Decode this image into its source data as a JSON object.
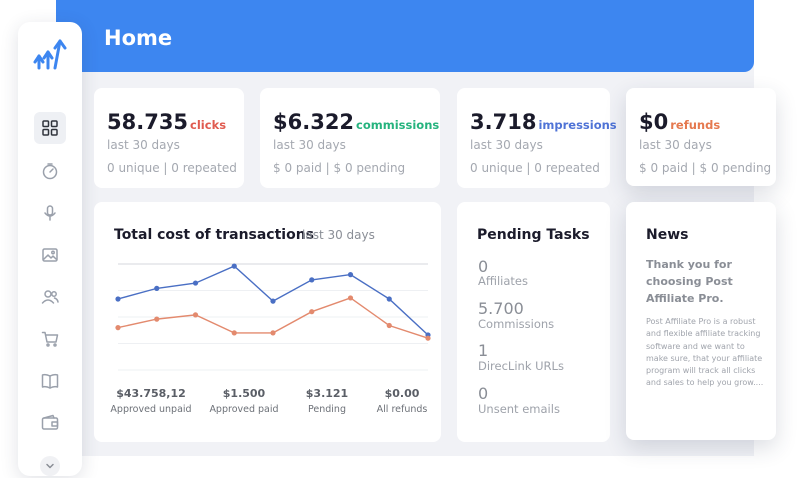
{
  "header": {
    "title": "Home",
    "background": "#3d86f0"
  },
  "sidebar": {
    "items": [
      {
        "icon": "dashboard-grid-icon",
        "active": true
      },
      {
        "icon": "stopwatch-icon"
      },
      {
        "icon": "microphone-icon"
      },
      {
        "icon": "image-icon"
      },
      {
        "icon": "users-icon"
      },
      {
        "icon": "cart-icon"
      },
      {
        "icon": "book-icon"
      },
      {
        "icon": "wallet-icon"
      }
    ],
    "scroll_icon": "chevron-down-icon"
  },
  "stats": [
    {
      "value": "58.735",
      "label": "clicks",
      "color": "#e05a4f",
      "period": "last 30 days",
      "detail": "0 unique | 0 repeated"
    },
    {
      "value": "$6.322",
      "label": "commissions",
      "color": "#25b37e",
      "period": "last 30 days",
      "detail": "$ 0 paid | $ 0 pending"
    },
    {
      "value": "3.718",
      "label": "impressions",
      "color": "#4f73d6",
      "period": "last 30 days",
      "detail": "0 unique | 0 repeated"
    },
    {
      "value": "$0",
      "label": "refunds",
      "color": "#e5794f",
      "period": "last 30 days",
      "detail": "$ 0 paid | $ 0 pending"
    }
  ],
  "transactions": {
    "title": "Total cost of transactions",
    "subtitle": "last 30 days",
    "summary": [
      {
        "value": "$43.758,12",
        "label": "Approved unpaid"
      },
      {
        "value": "$1.500",
        "label": "Approved paid"
      },
      {
        "value": "$3.121",
        "label": "Pending"
      },
      {
        "value": "$0.00",
        "label": "All refunds"
      }
    ]
  },
  "chart_data": {
    "type": "line",
    "title": "Total cost of transactions",
    "subtitle": "last 30 days",
    "x": [
      1,
      2,
      3,
      4,
      5,
      6,
      7,
      8,
      9
    ],
    "ylim": [
      0,
      100
    ],
    "grid": true,
    "series": [
      {
        "color": "#4a6fc4",
        "values": [
          67,
          77,
          82,
          98,
          65,
          85,
          90,
          67,
          33
        ]
      },
      {
        "color": "#e38a6e",
        "values": [
          40,
          48,
          52,
          35,
          35,
          55,
          68,
          42,
          30
        ]
      }
    ]
  },
  "tasks": {
    "title": "Pending Tasks",
    "items": [
      {
        "value": "0",
        "label": "Affiliates"
      },
      {
        "value": "5.700",
        "label": "Commissions"
      },
      {
        "value": "1",
        "label": "DirecLink URLs"
      },
      {
        "value": "0",
        "label": "Unsent emails"
      }
    ]
  },
  "news": {
    "title": "News",
    "headline": "Thank you for choosing Post Affiliate Pro.",
    "body": "Post Affiliate Pro is a robust and flexible affiliate tracking software and we want to make sure, that your affiliate program will track all clicks and sales to help you grow...."
  }
}
